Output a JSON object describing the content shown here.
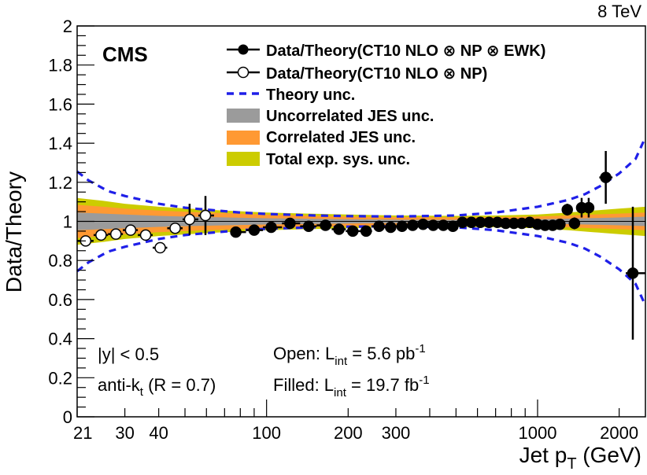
{
  "energy_label": "8 TeV",
  "cms_label": "CMS",
  "legend": [
    {
      "key": "filled",
      "label": "Data/Theory(CT10 NLO ⊗ NP ⊗ EWK)"
    },
    {
      "key": "open",
      "label": "Data/Theory(CT10 NLO ⊗ NP)"
    },
    {
      "key": "theory",
      "label": "Theory unc."
    },
    {
      "key": "uncorr",
      "label": "Uncorrelated JES unc."
    },
    {
      "key": "corr",
      "label": "Correlated JES unc."
    },
    {
      "key": "total",
      "label": "Total exp. sys. unc."
    }
  ],
  "annotations": {
    "rapidity": "|y| < 0.5",
    "algo_prefix": "anti-k",
    "algo_sub": "t",
    "algo_suffix": " (R = 0.7)",
    "open_prefix": "Open: L",
    "open_sub": "int",
    "open_value": " = 5.6 pb",
    "open_exp": "-1",
    "filled_prefix": "Filled: L",
    "filled_sub": "int",
    "filled_value": " = 19.7 fb",
    "filled_exp": "-1"
  },
  "colors": {
    "theory": "#1f1fe8",
    "uncorr": "#9b9b9b",
    "corr": "#ff9933",
    "total": "#cccc00"
  },
  "chart_data": {
    "type": "scatter",
    "title": "",
    "xlabel_main": "Jet p",
    "xlabel_sub": "T",
    "xlabel_unit": " (GeV)",
    "ylabel": "Data/Theory",
    "xscale": "log",
    "xlim": [
      20,
      2500
    ],
    "ylim": [
      0,
      2
    ],
    "x_ticks": [
      21,
      30,
      40,
      100,
      200,
      300,
      1000,
      2000
    ],
    "x_tick_labels": [
      "21",
      "30",
      "40",
      "100",
      "200",
      "300",
      "1000",
      "2000"
    ],
    "y_ticks": [
      0,
      0.2,
      0.4,
      0.6,
      0.8,
      1,
      1.2,
      1.4,
      1.6,
      1.8,
      2
    ],
    "y_tick_labels": [
      "0",
      "0.2",
      "0.4",
      "0.6",
      "0.8",
      "1",
      "1.2",
      "1.4",
      "1.6",
      "1.8",
      "2"
    ],
    "series": [
      {
        "name": "Data/Theory(CT10 NLO ⊗ NP)",
        "marker": "open-circle",
        "points": [
          {
            "x": 21.5,
            "y": 0.9,
            "xlo": 20,
            "xhi": 23,
            "err": 0.01
          },
          {
            "x": 24.5,
            "y": 0.93,
            "xlo": 23,
            "xhi": 26,
            "err": 0.01
          },
          {
            "x": 27.8,
            "y": 0.935,
            "xlo": 26,
            "xhi": 29.5,
            "err": 0.01
          },
          {
            "x": 31.5,
            "y": 0.955,
            "xlo": 29.5,
            "xhi": 33.5,
            "err": 0.01
          },
          {
            "x": 35.8,
            "y": 0.93,
            "xlo": 33.5,
            "xhi": 38,
            "err": 0.01
          },
          {
            "x": 40.5,
            "y": 0.865,
            "xlo": 38,
            "xhi": 43,
            "err": 0.02
          },
          {
            "x": 46,
            "y": 0.965,
            "xlo": 43,
            "xhi": 49,
            "err": 0.02
          },
          {
            "x": 52,
            "y": 1.01,
            "xlo": 49,
            "xhi": 56,
            "err": 0.08
          },
          {
            "x": 59.5,
            "y": 1.03,
            "xlo": 56,
            "xhi": 64,
            "err": 0.1
          }
        ]
      },
      {
        "name": "Data/Theory(CT10 NLO ⊗ NP ⊗ EWK)",
        "marker": "filled-circle",
        "points": [
          {
            "x": 77,
            "y": 0.945,
            "xlo": 74,
            "xhi": 84,
            "err": 0.01
          },
          {
            "x": 90,
            "y": 0.955,
            "xlo": 84,
            "xhi": 97,
            "err": 0.01
          },
          {
            "x": 104,
            "y": 0.97,
            "xlo": 97,
            "xhi": 114,
            "err": 0.01
          },
          {
            "x": 122,
            "y": 0.99,
            "xlo": 114,
            "xhi": 133,
            "err": 0.01
          },
          {
            "x": 143,
            "y": 0.975,
            "xlo": 133,
            "xhi": 153,
            "err": 0.01
          },
          {
            "x": 165,
            "y": 0.98,
            "xlo": 153,
            "xhi": 174,
            "err": 0.01
          },
          {
            "x": 185,
            "y": 0.96,
            "xlo": 174,
            "xhi": 196,
            "err": 0.01
          },
          {
            "x": 208,
            "y": 0.95,
            "xlo": 196,
            "xhi": 220,
            "err": 0.01
          },
          {
            "x": 233,
            "y": 0.95,
            "xlo": 220,
            "xhi": 245,
            "err": 0.01
          },
          {
            "x": 260,
            "y": 0.975,
            "xlo": 245,
            "xhi": 272,
            "err": 0.01
          },
          {
            "x": 287,
            "y": 0.97,
            "xlo": 272,
            "xhi": 300,
            "err": 0.01
          },
          {
            "x": 316,
            "y": 0.975,
            "xlo": 300,
            "xhi": 330,
            "err": 0.01
          },
          {
            "x": 346,
            "y": 0.98,
            "xlo": 330,
            "xhi": 362,
            "err": 0.01
          },
          {
            "x": 378,
            "y": 0.985,
            "xlo": 362,
            "xhi": 395,
            "err": 0.01
          },
          {
            "x": 412,
            "y": 0.98,
            "xlo": 395,
            "xhi": 430,
            "err": 0.01
          },
          {
            "x": 449,
            "y": 0.98,
            "xlo": 430,
            "xhi": 468,
            "err": 0.01
          },
          {
            "x": 487,
            "y": 0.975,
            "xlo": 468,
            "xhi": 507,
            "err": 0.01
          },
          {
            "x": 528,
            "y": 0.995,
            "xlo": 507,
            "xhi": 548,
            "err": 0.01
          },
          {
            "x": 570,
            "y": 0.995,
            "xlo": 548,
            "xhi": 592,
            "err": 0.01
          },
          {
            "x": 615,
            "y": 0.995,
            "xlo": 592,
            "xhi": 638,
            "err": 0.01
          },
          {
            "x": 662,
            "y": 0.995,
            "xlo": 638,
            "xhi": 686,
            "err": 0.01
          },
          {
            "x": 711,
            "y": 0.995,
            "xlo": 686,
            "xhi": 737,
            "err": 0.01
          },
          {
            "x": 763,
            "y": 0.99,
            "xlo": 737,
            "xhi": 790,
            "err": 0.01
          },
          {
            "x": 818,
            "y": 0.99,
            "xlo": 790,
            "xhi": 846,
            "err": 0.01
          },
          {
            "x": 875,
            "y": 0.99,
            "xlo": 846,
            "xhi": 905,
            "err": 0.01
          },
          {
            "x": 935,
            "y": 0.995,
            "xlo": 905,
            "xhi": 967,
            "err": 0.01
          },
          {
            "x": 999,
            "y": 0.985,
            "xlo": 967,
            "xhi": 1032,
            "err": 0.01
          },
          {
            "x": 1066,
            "y": 0.98,
            "xlo": 1032,
            "xhi": 1101,
            "err": 0.01
          },
          {
            "x": 1137,
            "y": 0.98,
            "xlo": 1101,
            "xhi": 1172,
            "err": 0.01
          },
          {
            "x": 1209,
            "y": 0.985,
            "xlo": 1172,
            "xhi": 1248,
            "err": 0.01
          },
          {
            "x": 1287,
            "y": 1.06,
            "xlo": 1248,
            "xhi": 1327,
            "err": 0.03
          },
          {
            "x": 1368,
            "y": 0.99,
            "xlo": 1327,
            "xhi": 1410,
            "err": 0.03
          },
          {
            "x": 1454,
            "y": 1.07,
            "xlo": 1410,
            "xhi": 1497,
            "err": 0.05
          },
          {
            "x": 1544,
            "y": 1.07,
            "xlo": 1497,
            "xhi": 1588,
            "err": 0.05
          },
          {
            "x": 1785,
            "y": 1.225,
            "xlo": 1690,
            "xhi": 1890,
            "err": 0.135
          },
          {
            "x": 2246,
            "y": 0.735,
            "xlo": 2116,
            "xhi": 2500,
            "err": 0.34
          }
        ]
      }
    ],
    "bands": {
      "x": [
        20,
        25,
        30,
        40,
        60,
        100,
        200,
        300,
        500,
        700,
        1000,
        1300,
        1600,
        2000,
        2500
      ],
      "total_half": [
        0.12,
        0.105,
        0.09,
        0.075,
        0.06,
        0.045,
        0.035,
        0.03,
        0.028,
        0.03,
        0.035,
        0.045,
        0.055,
        0.065,
        0.075
      ],
      "corr_half": [
        0.085,
        0.075,
        0.065,
        0.055,
        0.045,
        0.035,
        0.025,
        0.022,
        0.02,
        0.022,
        0.025,
        0.03,
        0.035,
        0.04,
        0.045
      ],
      "uncorr_half": [
        0.045,
        0.04,
        0.035,
        0.028,
        0.022,
        0.016,
        0.011,
        0.009,
        0.008,
        0.009,
        0.011,
        0.014,
        0.017,
        0.02,
        0.024
      ],
      "theory_x": [
        20,
        22,
        26,
        30,
        40,
        50,
        60,
        80,
        100,
        150,
        200,
        300,
        500,
        700,
        1000,
        1300,
        1500,
        1700,
        2000,
        2300,
        2500
      ],
      "theory_half": [
        0.255,
        0.21,
        0.155,
        0.13,
        0.09,
        0.07,
        0.06,
        0.045,
        0.038,
        0.03,
        0.027,
        0.025,
        0.03,
        0.045,
        0.075,
        0.11,
        0.14,
        0.18,
        0.245,
        0.32,
        0.43
      ]
    }
  }
}
